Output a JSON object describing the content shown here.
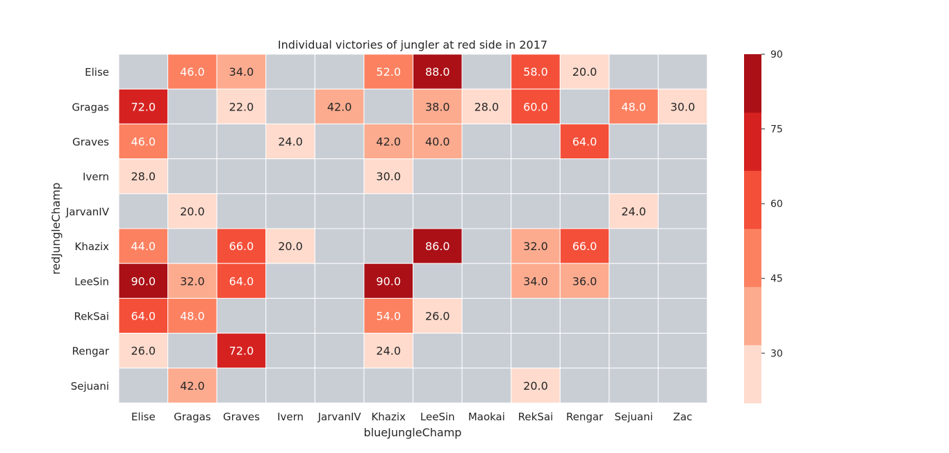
{
  "chart_data": {
    "type": "heatmap",
    "title": "Individual victories of jungler at red side in 2017",
    "xlabel": "blueJungleChamp",
    "ylabel": "redJungleChamp",
    "x_categories": [
      "Elise",
      "Gragas",
      "Graves",
      "Ivern",
      "JarvanIV",
      "Khazix",
      "LeeSin",
      "Maokai",
      "RekSai",
      "Rengar",
      "Sejuani",
      "Zac"
    ],
    "y_categories": [
      "Elise",
      "Gragas",
      "Graves",
      "Ivern",
      "JarvanIV",
      "Khazix",
      "LeeSin",
      "RekSai",
      "Rengar",
      "Sejuani"
    ],
    "values": [
      [
        null,
        46.0,
        34.0,
        null,
        null,
        52.0,
        88.0,
        null,
        58.0,
        20.0,
        null,
        null
      ],
      [
        72.0,
        null,
        22.0,
        null,
        42.0,
        null,
        38.0,
        28.0,
        60.0,
        null,
        48.0,
        30.0
      ],
      [
        46.0,
        null,
        null,
        24.0,
        null,
        42.0,
        40.0,
        null,
        null,
        64.0,
        null,
        null
      ],
      [
        28.0,
        null,
        null,
        null,
        null,
        30.0,
        null,
        null,
        null,
        null,
        null,
        null
      ],
      [
        null,
        20.0,
        null,
        null,
        null,
        null,
        null,
        null,
        null,
        null,
        24.0,
        null
      ],
      [
        44.0,
        null,
        66.0,
        20.0,
        null,
        null,
        86.0,
        null,
        32.0,
        66.0,
        null,
        null
      ],
      [
        90.0,
        32.0,
        64.0,
        null,
        null,
        90.0,
        null,
        null,
        34.0,
        36.0,
        null,
        null
      ],
      [
        64.0,
        48.0,
        null,
        null,
        null,
        54.0,
        26.0,
        null,
        null,
        null,
        null,
        null
      ],
      [
        26.0,
        null,
        72.0,
        null,
        null,
        24.0,
        null,
        null,
        null,
        null,
        null,
        null
      ],
      [
        null,
        42.0,
        null,
        null,
        null,
        null,
        null,
        null,
        20.0,
        null,
        null,
        null
      ]
    ],
    "value_format": "1 decimal",
    "missing_color": "#c9ced5",
    "colorbar": {
      "range": [
        20,
        90
      ],
      "ticks": [
        30,
        45,
        60,
        75,
        90
      ],
      "bin_colors": [
        "#fedbcd",
        "#fcab8f",
        "#fc8161",
        "#f44f39",
        "#d52221",
        "#aa1016"
      ]
    },
    "grid": false,
    "legend": "colorbar-right"
  }
}
